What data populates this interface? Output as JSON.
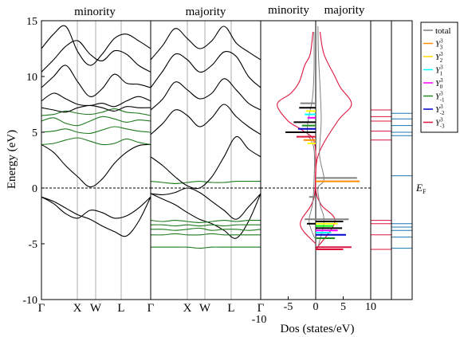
{
  "chart_data": [
    {
      "type": "line",
      "panel": "minority band structure",
      "title": "minority",
      "ylabel": "Energy (eV)",
      "ylim": [
        -10,
        15
      ],
      "yticks": [
        -10,
        -5,
        0,
        5,
        10,
        15
      ],
      "kpoints": [
        "Γ",
        "X",
        "W",
        "L",
        "Γ"
      ],
      "series": [
        {
          "values": [
            -0.8,
            -1.4,
            -2.3,
            -2.7,
            -2.0,
            -2.2,
            -2.7,
            -2.5,
            -1.8,
            -0.8
          ],
          "color": "#000000"
        },
        {
          "values": [
            -0.8,
            -1.2,
            -1.8,
            -2.4,
            -2.8,
            -3.4,
            -3.9,
            -4.3,
            -3.0,
            -0.8
          ],
          "color": "#000000"
        },
        {
          "values": [
            3.9,
            3.2,
            2.0,
            1.0,
            0.1,
            0.8,
            2.2,
            3.2,
            3.8,
            3.9
          ],
          "color": "#000000"
        },
        {
          "values": [
            3.9,
            4.0,
            4.3,
            4.5,
            4.2,
            3.9,
            4.0,
            4.4,
            4.1,
            3.9
          ],
          "color": "#1f7a1f"
        },
        {
          "values": [
            5.0,
            5.1,
            5.3,
            5.0,
            4.9,
            5.2,
            5.5,
            5.3,
            5.1,
            5.0
          ],
          "color": "#1f7a1f"
        },
        {
          "values": [
            6.0,
            6.3,
            5.8,
            5.6,
            6.0,
            6.4,
            6.2,
            5.9,
            6.1,
            6.0
          ],
          "color": "#1f7a1f"
        },
        {
          "values": [
            6.5,
            6.6,
            6.9,
            6.7,
            6.6,
            6.8,
            7.1,
            6.8,
            6.7,
            6.5
          ],
          "color": "#1f7a1f"
        },
        {
          "values": [
            7.2,
            7.0,
            6.8,
            7.2,
            7.4,
            7.2,
            6.9,
            7.3,
            7.2,
            7.2
          ],
          "color": "#000000"
        },
        {
          "values": [
            7.8,
            8.5,
            8.0,
            7.5,
            7.4,
            7.6,
            7.3,
            7.8,
            8.2,
            7.8
          ],
          "color": "#000000"
        },
        {
          "values": [
            9.0,
            10.0,
            11.0,
            9.5,
            8.2,
            8.9,
            10.2,
            9.4,
            9.3,
            9.0
          ],
          "color": "#000000"
        },
        {
          "values": [
            10.4,
            11.5,
            12.7,
            13.2,
            12.0,
            11.4,
            12.3,
            12.0,
            11.0,
            10.4
          ],
          "color": "#000000"
        },
        {
          "values": [
            12.5,
            13.8,
            14.5,
            12.2,
            11.0,
            12.0,
            13.4,
            13.8,
            13.2,
            12.5
          ],
          "color": "#000000"
        }
      ]
    },
    {
      "type": "line",
      "panel": "majority band structure",
      "title": "majority",
      "ylim": [
        -10,
        15
      ],
      "kpoints": [
        "Γ",
        "X",
        "W",
        "L",
        "Γ"
      ],
      "series": [
        {
          "values": [
            -0.5,
            -1.0,
            -1.5,
            -2.2,
            -2.8,
            -3.2,
            -3.8,
            -4.5,
            -3.0,
            -0.5
          ],
          "color": "#000000"
        },
        {
          "values": [
            -0.5,
            -0.6,
            -0.4,
            0.0,
            -0.4,
            -1.2,
            -2.0,
            -2.8,
            -1.7,
            -0.5
          ],
          "color": "#000000"
        },
        {
          "values": [
            0.6,
            0.5,
            0.4,
            0.5,
            0.6,
            0.5,
            0.5,
            0.6,
            0.6,
            0.6
          ],
          "color": "#1f7a1f"
        },
        {
          "values": [
            2.8,
            2.0,
            1.0,
            0.2,
            0.0,
            1.0,
            2.8,
            4.6,
            3.5,
            2.8
          ],
          "color": "#000000"
        },
        {
          "values": [
            4.8,
            5.8,
            7.0,
            6.5,
            5.5,
            6.3,
            7.5,
            6.4,
            5.5,
            4.8
          ],
          "color": "#000000"
        },
        {
          "values": [
            7.0,
            8.0,
            9.5,
            8.8,
            8.0,
            8.5,
            9.8,
            8.8,
            7.6,
            7.0
          ],
          "color": "#000000"
        },
        {
          "values": [
            9.0,
            10.5,
            12.0,
            11.5,
            10.4,
            11.0,
            12.2,
            11.8,
            10.0,
            9.0
          ],
          "color": "#000000"
        },
        {
          "values": [
            11.5,
            12.8,
            14.3,
            13.4,
            12.5,
            13.2,
            14.5,
            13.0,
            12.2,
            11.5
          ],
          "color": "#000000"
        },
        {
          "values": [
            -2.9,
            -3.0,
            -2.9,
            -3.0,
            -3.1,
            -3.0,
            -2.9,
            -3.0,
            -2.9,
            -2.9
          ],
          "color": "#1f7a1f"
        },
        {
          "values": [
            -3.3,
            -3.3,
            -3.4,
            -3.3,
            -3.4,
            -3.3,
            -3.4,
            -3.3,
            -3.3,
            -3.3
          ],
          "color": "#1f7a1f"
        },
        {
          "values": [
            -3.7,
            -3.7,
            -3.8,
            -3.7,
            -3.6,
            -3.8,
            -3.7,
            -3.7,
            -3.8,
            -3.7
          ],
          "color": "#1f7a1f"
        },
        {
          "values": [
            -4.2,
            -4.2,
            -4.1,
            -4.2,
            -4.2,
            -4.1,
            -4.2,
            -4.2,
            -4.2,
            -4.2
          ],
          "color": "#1f7a1f"
        },
        {
          "values": [
            -5.3,
            -5.3,
            -5.3,
            -5.3,
            -5.4,
            -5.3,
            -5.3,
            -5.3,
            -5.3,
            -5.3
          ],
          "color": "#1f7a1f"
        }
      ]
    },
    {
      "type": "line",
      "panel": "density of states",
      "titles": [
        "minority",
        "majority"
      ],
      "xlabel": "Dos (states/eV)",
      "xlim": [
        -10,
        10
      ],
      "xticks": [
        -10,
        -5,
        0,
        5,
        10
      ],
      "ylim": [
        -10,
        15
      ],
      "minority_total": [
        [
          -0.2,
          -4.5
        ],
        [
          -1.2,
          -3.0
        ],
        [
          -0.6,
          -1.5
        ],
        [
          -0.3,
          0.5
        ],
        [
          -0.3,
          3.5
        ],
        [
          -1.5,
          5.0
        ],
        [
          -1.2,
          6.5
        ],
        [
          -0.6,
          8.0
        ],
        [
          -0.3,
          10.5
        ],
        [
          -0.3,
          14.0
        ]
      ],
      "minority_y3_red": [
        [
          0.0,
          -5.0
        ],
        [
          -2.8,
          -3.3
        ],
        [
          -0.8,
          -1.5
        ],
        [
          -0.1,
          0.0
        ],
        [
          -0.2,
          4.0
        ],
        [
          -2.5,
          5.2
        ],
        [
          -5.0,
          6.0
        ],
        [
          -7.0,
          7.5
        ],
        [
          -4.5,
          8.5
        ],
        [
          -3.0,
          9.5
        ],
        [
          -2.0,
          11.0
        ],
        [
          -1.0,
          12.0
        ],
        [
          -0.5,
          14.0
        ]
      ],
      "majority_total": [
        [
          0.3,
          -5.5
        ],
        [
          1.5,
          -3.0
        ],
        [
          0.8,
          -1.5
        ],
        [
          0.4,
          0.0
        ],
        [
          1.5,
          0.8
        ],
        [
          0.7,
          3.0
        ],
        [
          1.0,
          6.0
        ],
        [
          0.8,
          9.0
        ],
        [
          0.5,
          12.0
        ],
        [
          0.4,
          14.5
        ]
      ],
      "majority_y3_red": [
        [
          0.0,
          -5.5
        ],
        [
          3.5,
          -3.0
        ],
        [
          1.0,
          -1.5
        ],
        [
          0.0,
          0.0
        ],
        [
          0.5,
          3.0
        ],
        [
          4.0,
          6.0
        ],
        [
          6.5,
          7.5
        ],
        [
          4.5,
          9.0
        ],
        [
          3.5,
          10.0
        ],
        [
          1.5,
          12.0
        ],
        [
          0.8,
          14.0
        ]
      ],
      "minority_sticks": [
        {
          "y": 7.6,
          "x": -2.8,
          "color": "#808080"
        },
        {
          "y": 7.2,
          "x": -3.0,
          "color": "#000000"
        },
        {
          "y": 6.9,
          "x": -1.8,
          "color": "#ffff00"
        },
        {
          "y": 6.6,
          "x": -2.0,
          "color": "#00ffff"
        },
        {
          "y": 6.3,
          "x": -1.5,
          "color": "#ff00ff"
        },
        {
          "y": 5.9,
          "x": -4.0,
          "color": "#000000"
        },
        {
          "y": 5.6,
          "x": -2.5,
          "color": "#228b22"
        },
        {
          "y": 5.3,
          "x": -3.2,
          "color": "#0000cd"
        },
        {
          "y": 5.0,
          "x": -5.5,
          "color": "#000000"
        },
        {
          "y": 4.6,
          "x": -3.5,
          "color": "#dc143c"
        },
        {
          "y": 4.3,
          "x": -2.2,
          "color": "#ff8c00"
        },
        {
          "y": 4.0,
          "x": -1.5,
          "color": "#ffff00"
        },
        {
          "y": -0.8,
          "x": -1.2,
          "color": "#808080"
        },
        {
          "y": -2.8,
          "x": -2.0,
          "color": "#808080"
        },
        {
          "y": -3.2,
          "x": -1.6,
          "color": "#000000"
        }
      ],
      "majority_sticks": [
        {
          "y": 0.6,
          "x": 8.0,
          "color": "#ff8c00"
        },
        {
          "y": 0.9,
          "x": 7.5,
          "color": "#808080"
        },
        {
          "y": -2.8,
          "x": 6.0,
          "color": "#808080"
        },
        {
          "y": -3.0,
          "x": 5.0,
          "color": "#000000"
        },
        {
          "y": -3.2,
          "x": 4.0,
          "color": "#ffff00"
        },
        {
          "y": -3.4,
          "x": 3.2,
          "color": "#00ff00"
        },
        {
          "y": -3.6,
          "x": 4.8,
          "color": "#000000"
        },
        {
          "y": -3.8,
          "x": 4.0,
          "color": "#ff00ff"
        },
        {
          "y": -4.0,
          "x": 2.8,
          "color": "#00ffff"
        },
        {
          "y": -4.2,
          "x": 5.5,
          "color": "#0000cd"
        },
        {
          "y": -4.5,
          "x": 3.5,
          "color": "#228b22"
        },
        {
          "y": -5.3,
          "x": 6.5,
          "color": "#dc143c"
        },
        {
          "y": -5.5,
          "x": 5.0,
          "color": "#dc143c"
        }
      ],
      "legend": {
        "placement": "right",
        "entries": [
          {
            "base": "total",
            "sup": "",
            "sub": "",
            "color": "#808080"
          },
          {
            "base": "Y",
            "sup": "3",
            "sub": "3",
            "color": "#ff8c00"
          },
          {
            "base": "Y",
            "sup": "3",
            "sub": "2",
            "color": "#ffd700"
          },
          {
            "base": "Y",
            "sup": "3",
            "sub": "1",
            "color": "#00ffff"
          },
          {
            "base": "Y",
            "sup": "3",
            "sub": "0",
            "color": "#ff00ff"
          },
          {
            "base": "Y",
            "sup": "3",
            "sub": "-1",
            "color": "#228b22"
          },
          {
            "base": "Y",
            "sup": "3",
            "sub": "-2",
            "color": "#0000cd"
          },
          {
            "base": "Y",
            "sup": "3",
            "sub": "-3",
            "color": "#dc143c"
          }
        ]
      }
    },
    {
      "type": "line",
      "panel": "level diagrams",
      "ylim": [
        -10,
        15
      ],
      "left_levels": [
        {
          "y": 7.0,
          "color": "#dc143c"
        },
        {
          "y": 6.4,
          "color": "#dc143c"
        },
        {
          "y": 6.0,
          "color": "#dc143c"
        },
        {
          "y": 5.1,
          "color": "#dc143c"
        },
        {
          "y": 4.3,
          "color": "#dc143c"
        },
        {
          "y": -2.9,
          "color": "#dc143c"
        },
        {
          "y": -3.2,
          "color": "#dc143c"
        },
        {
          "y": -4.2,
          "color": "#dc143c"
        },
        {
          "y": -5.5,
          "color": "#dc143c"
        }
      ],
      "right_levels": [
        {
          "y": 6.7,
          "color": "#1f77b4"
        },
        {
          "y": 6.2,
          "color": "#1f77b4"
        },
        {
          "y": 5.6,
          "color": "#1f77b4"
        },
        {
          "y": 5.0,
          "color": "#1f77b4"
        },
        {
          "y": 4.7,
          "color": "#1f77b4"
        },
        {
          "y": 1.1,
          "color": "#1f77b4"
        },
        {
          "y": -3.2,
          "color": "#1f77b4"
        },
        {
          "y": -3.5,
          "color": "#1f77b4"
        },
        {
          "y": -3.8,
          "color": "#1f77b4"
        },
        {
          "y": -4.4,
          "color": "#1f77b4"
        },
        {
          "y": -5.4,
          "color": "#1f77b4"
        }
      ]
    }
  ],
  "fermi_label": {
    "base": "E",
    "sub": "F"
  }
}
